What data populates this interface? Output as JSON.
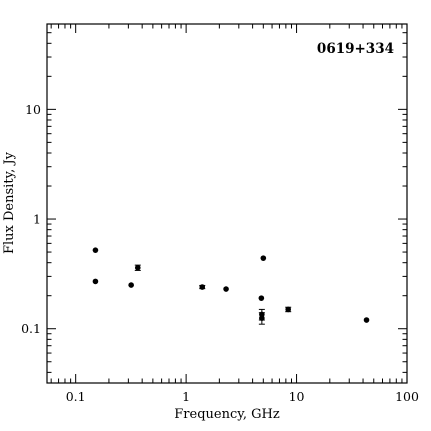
{
  "chart_data": {
    "type": "scatter",
    "title": "0619+334",
    "xlabel": "Frequency, GHz",
    "ylabel": "Flux Density, Jy",
    "xscale": "log",
    "yscale": "log",
    "xlim": [
      0.055,
      100
    ],
    "ylim": [
      0.032,
      60
    ],
    "grid": false,
    "legend": "none",
    "label_position": "top-right",
    "x_tick_labels": [
      "0.1",
      "1",
      "10",
      "100"
    ],
    "x_tick_values": [
      0.1,
      1,
      10,
      100
    ],
    "y_tick_labels": [
      "0.1",
      "1",
      "10"
    ],
    "y_tick_values": [
      0.1,
      1,
      10
    ],
    "series": [
      {
        "points": [
          {
            "x": 0.151,
            "y": 0.52,
            "err": 0
          },
          {
            "x": 0.151,
            "y": 0.27,
            "err": 0
          },
          {
            "x": 0.318,
            "y": 0.25,
            "err": 0
          },
          {
            "x": 0.365,
            "y": 0.36,
            "err": 0.02
          },
          {
            "x": 1.4,
            "y": 0.24,
            "err": 0.008
          },
          {
            "x": 2.3,
            "y": 0.23,
            "err": 0
          },
          {
            "x": 4.8,
            "y": 0.19,
            "err": 0
          },
          {
            "x": 4.85,
            "y": 0.135,
            "err": 0.015
          },
          {
            "x": 4.85,
            "y": 0.125,
            "err": 0.015
          },
          {
            "x": 5.0,
            "y": 0.44,
            "err": 0
          },
          {
            "x": 8.4,
            "y": 0.15,
            "err": 0.007
          },
          {
            "x": 43,
            "y": 0.12,
            "err": 0
          }
        ]
      }
    ]
  }
}
